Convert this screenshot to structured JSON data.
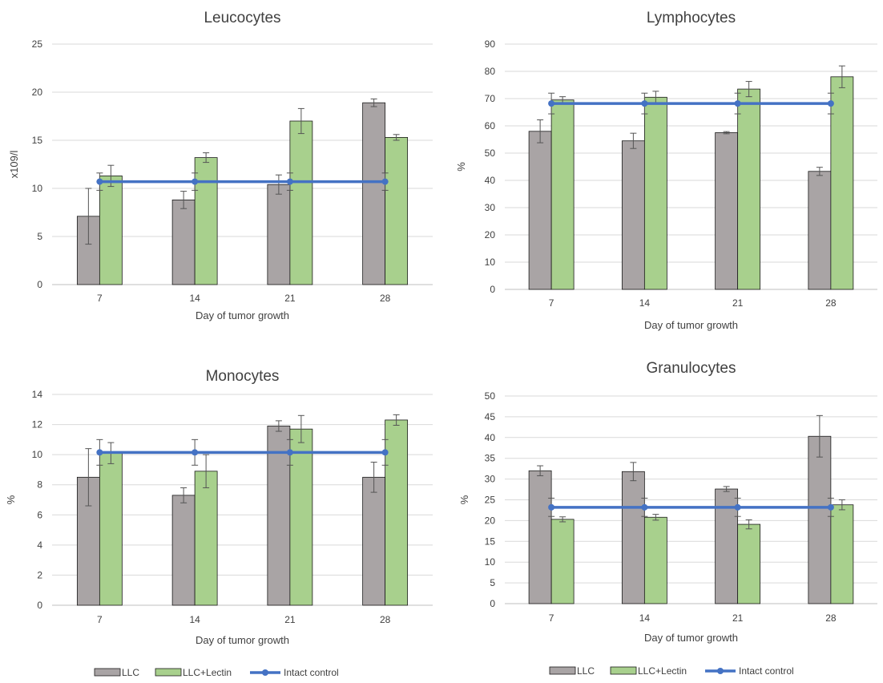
{
  "colors": {
    "llc": "#a9a4a5",
    "lectin": "#a8d08d",
    "control": "#4472c4",
    "grid": "#d9d9d9",
    "axis": "#bfbfbf",
    "text": "#404040"
  },
  "legends": [
    {
      "llc": "LLC",
      "lectin": "LLC+Lectin",
      "control": "Intact control"
    },
    {
      "llc": "LLC",
      "lectin": "LLC+Lectin",
      "control": "Intact control"
    }
  ],
  "chart_data": [
    {
      "type": "bar",
      "title": "Leucocytes",
      "xlabel": "Day of tumor growth",
      "ylabel": "x109/l",
      "categories": [
        "7",
        "14",
        "21",
        "28"
      ],
      "ylim": [
        0,
        25
      ],
      "yticks": [
        "0",
        "5",
        "10",
        "15",
        "20",
        "25"
      ],
      "grid": true,
      "legend": "bottom",
      "series": [
        {
          "name": "LLC",
          "type": "bar",
          "values": [
            7.1,
            8.8,
            10.4,
            18.9
          ],
          "errors": [
            2.9,
            0.9,
            1.0,
            0.4
          ]
        },
        {
          "name": "LLC+Lectin",
          "type": "bar",
          "values": [
            11.3,
            13.2,
            17.0,
            15.3
          ],
          "errors": [
            1.1,
            0.5,
            1.3,
            0.3
          ]
        },
        {
          "name": "Intact control",
          "type": "line",
          "values": [
            10.7,
            10.7,
            10.7,
            10.7
          ],
          "errors": [
            0.9,
            0.9,
            0.9,
            0.9
          ]
        }
      ]
    },
    {
      "type": "bar",
      "title": "Lymphocytes",
      "xlabel": "Day of tumor growth",
      "ylabel": "%",
      "categories": [
        "7",
        "14",
        "21",
        "28"
      ],
      "ylim": [
        0,
        90
      ],
      "yticks": [
        "0",
        "10",
        "20",
        "30",
        "40",
        "50",
        "60",
        "70",
        "80",
        "90"
      ],
      "grid": true,
      "legend": "bottom",
      "series": [
        {
          "name": "LLC",
          "type": "bar",
          "values": [
            58,
            54.5,
            57.5,
            43.3
          ],
          "errors": [
            4.2,
            2.8,
            0.4,
            1.5
          ]
        },
        {
          "name": "LLC+Lectin",
          "type": "bar",
          "values": [
            69.5,
            70.5,
            73.5,
            78
          ],
          "errors": [
            1.2,
            2.2,
            2.8,
            4
          ]
        },
        {
          "name": "Intact control",
          "type": "line",
          "values": [
            68.2,
            68.2,
            68.2,
            68.2
          ],
          "errors": [
            3.8,
            3.8,
            3.8,
            3.8
          ]
        }
      ]
    },
    {
      "type": "bar",
      "title": "Monocytes",
      "xlabel": "Day of tumor growth",
      "ylabel": "%",
      "categories": [
        "7",
        "14",
        "21",
        "28"
      ],
      "ylim": [
        0,
        14
      ],
      "yticks": [
        "0",
        "2",
        "4",
        "6",
        "8",
        "10",
        "12",
        "14"
      ],
      "grid": true,
      "legend": "bottom",
      "series": [
        {
          "name": "LLC",
          "type": "bar",
          "values": [
            8.5,
            7.3,
            11.9,
            8.5
          ],
          "errors": [
            1.9,
            0.5,
            0.35,
            1.0
          ]
        },
        {
          "name": "LLC+Lectin",
          "type": "bar",
          "values": [
            10.1,
            8.9,
            11.7,
            12.3
          ],
          "errors": [
            0.7,
            1.1,
            0.9,
            0.35
          ]
        },
        {
          "name": "Intact control",
          "type": "line",
          "values": [
            10.15,
            10.15,
            10.15,
            10.15
          ],
          "errors": [
            0.85,
            0.85,
            0.85,
            0.85
          ]
        }
      ]
    },
    {
      "type": "bar",
      "title": "Granulocytes",
      "xlabel": "Day of tumor growth",
      "ylabel": "%",
      "categories": [
        "7",
        "14",
        "21",
        "28"
      ],
      "ylim": [
        0,
        50
      ],
      "yticks": [
        "0",
        "5",
        "10",
        "15",
        "20",
        "25",
        "30",
        "35",
        "40",
        "45",
        "50"
      ],
      "grid": true,
      "legend": "bottom",
      "series": [
        {
          "name": "LLC",
          "type": "bar",
          "values": [
            32,
            31.8,
            27.6,
            40.3
          ],
          "errors": [
            1.2,
            2.2,
            0.6,
            5
          ]
        },
        {
          "name": "LLC+Lectin",
          "type": "bar",
          "values": [
            20.3,
            20.8,
            19.1,
            23.8
          ],
          "errors": [
            0.6,
            0.7,
            1.1,
            1.2
          ]
        },
        {
          "name": "Intact control",
          "type": "line",
          "values": [
            23.2,
            23.2,
            23.2,
            23.2
          ],
          "errors": [
            2.2,
            2.2,
            2.2,
            2.2
          ]
        }
      ]
    }
  ]
}
